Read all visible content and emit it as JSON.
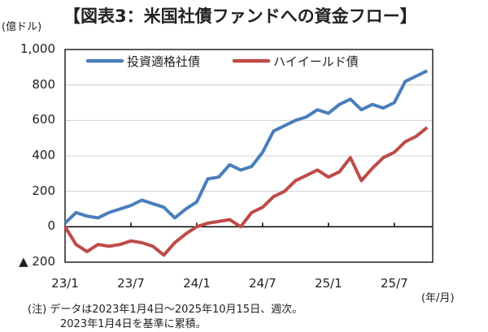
{
  "title": "【図表3：米国社債ファンドへの資金フロー】",
  "unit": "(億ドル)",
  "xunit": "(年/月)",
  "note": [
    "(注) データは2023年1月4日～2025年10月15日、週次。",
    "2023年1月4日を基準に累積。"
  ],
  "chart_data": {
    "type": "line",
    "title": "【図表3：米国社債ファンドへの資金フロー】",
    "ylabel": "(億ドル)",
    "xlabel": "(年/月)",
    "ylim": [
      -200,
      1000
    ],
    "yticks": [
      {
        "v": 1000,
        "label": "1,000"
      },
      {
        "v": 800,
        "label": "800"
      },
      {
        "v": 600,
        "label": "600"
      },
      {
        "v": 400,
        "label": "400"
      },
      {
        "v": 200,
        "label": "200"
      },
      {
        "v": 0,
        "label": "0"
      },
      {
        "v": -200,
        "label": "▲ 200"
      }
    ],
    "xticks": [
      {
        "v": 0,
        "label": "23/1"
      },
      {
        "v": 6,
        "label": "23/7"
      },
      {
        "v": 12,
        "label": "24/1"
      },
      {
        "v": 18,
        "label": "24/7"
      },
      {
        "v": 24,
        "label": "25/1"
      },
      {
        "v": 30,
        "label": "25/7"
      }
    ],
    "grid": true,
    "legend": "top-left",
    "x": [
      "2023-01",
      "2023-02",
      "2023-03",
      "2023-04",
      "2023-05",
      "2023-06",
      "2023-07",
      "2023-08",
      "2023-09",
      "2023-10",
      "2023-11",
      "2023-12",
      "2024-01",
      "2024-02",
      "2024-03",
      "2024-04",
      "2024-05",
      "2024-06",
      "2024-07",
      "2024-08",
      "2024-09",
      "2024-10",
      "2024-11",
      "2024-12",
      "2025-01",
      "2025-02",
      "2025-03",
      "2025-04",
      "2025-05",
      "2025-06",
      "2025-07",
      "2025-08",
      "2025-09",
      "2025-10-15"
    ],
    "series": [
      {
        "name": "投資適格社債",
        "color": "#4a7ebb",
        "values": [
          20,
          80,
          60,
          50,
          80,
          100,
          120,
          150,
          130,
          110,
          50,
          100,
          140,
          270,
          280,
          350,
          320,
          340,
          420,
          540,
          570,
          600,
          620,
          660,
          640,
          690,
          720,
          660,
          690,
          670,
          700,
          820,
          850,
          880
        ]
      },
      {
        "name": "ハイイールド債",
        "color": "#be4b48",
        "values": [
          0,
          -100,
          -140,
          -100,
          -110,
          -100,
          -80,
          -90,
          -110,
          -160,
          -90,
          -40,
          0,
          20,
          30,
          40,
          0,
          80,
          110,
          170,
          200,
          260,
          290,
          320,
          280,
          310,
          390,
          260,
          330,
          390,
          420,
          480,
          510,
          560
        ]
      }
    ]
  }
}
